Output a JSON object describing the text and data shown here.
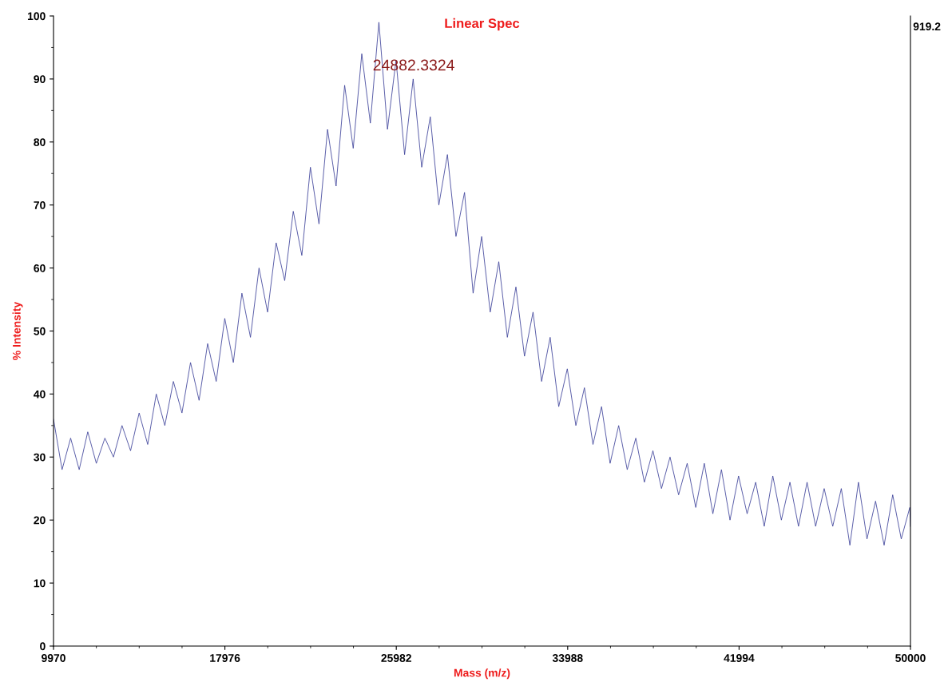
{
  "chart_data": {
    "type": "line",
    "title": "Linear Spec",
    "xlabel": "Mass (m/z)",
    "ylabel": "% Intensity",
    "annotations": [
      {
        "text": "24882.3324",
        "x": 24882.3324,
        "y": 92
      },
      "919.2"
    ],
    "xlim": [
      9970,
      50000
    ],
    "xticks": [
      9970,
      17976,
      25982,
      33988,
      41994,
      50000
    ],
    "ylim": [
      0,
      100
    ],
    "yticks": [
      0,
      10,
      20,
      30,
      40,
      50,
      60,
      70,
      80,
      90,
      100
    ],
    "grid": false,
    "legend": false,
    "marker": "none",
    "line_style": "solid",
    "series": [
      {
        "color": "#3b4099",
        "x": [
          9970,
          10370,
          10770,
          11170,
          11570,
          11970,
          12370,
          12770,
          13170,
          13570,
          13970,
          14370,
          14770,
          15170,
          15570,
          15970,
          16370,
          16770,
          17170,
          17570,
          17970,
          18370,
          18770,
          19170,
          19570,
          19970,
          20370,
          20770,
          21170,
          21570,
          21970,
          22370,
          22770,
          23170,
          23570,
          23970,
          24370,
          24770,
          25170,
          25570,
          25970,
          26370,
          26770,
          27170,
          27570,
          27970,
          28370,
          28770,
          29170,
          29570,
          29970,
          30370,
          30770,
          31170,
          31570,
          31970,
          32370,
          32770,
          33170,
          33570,
          33970,
          34370,
          34770,
          35170,
          35570,
          35970,
          36370,
          36770,
          37170,
          37570,
          37970,
          38370,
          38770,
          39170,
          39570,
          39970,
          40370,
          40770,
          41170,
          41570,
          41970,
          42370,
          42770,
          43170,
          43570,
          43970,
          44370,
          44770,
          45170,
          45570,
          45970,
          46370,
          46770,
          47170,
          47570,
          47970,
          48370,
          48770,
          49170,
          49570,
          49970,
          50000
        ],
        "values": [
          36,
          28,
          33,
          28,
          34,
          29,
          33,
          30,
          35,
          31,
          37,
          32,
          40,
          35,
          42,
          37,
          45,
          39,
          48,
          42,
          52,
          45,
          56,
          49,
          60,
          53,
          64,
          58,
          69,
          62,
          76,
          67,
          82,
          73,
          89,
          79,
          94,
          83,
          99,
          82,
          93,
          78,
          90,
          76,
          84,
          70,
          78,
          65,
          72,
          56,
          65,
          53,
          61,
          49,
          57,
          46,
          53,
          42,
          49,
          38,
          44,
          35,
          41,
          32,
          38,
          29,
          35,
          28,
          33,
          26,
          31,
          25,
          30,
          24,
          29,
          22,
          29,
          21,
          28,
          20,
          27,
          21,
          26,
          19,
          27,
          20,
          26,
          19,
          26,
          19,
          25,
          19,
          25,
          16,
          26,
          17,
          23,
          16,
          24,
          17,
          22,
          19
        ]
      }
    ]
  }
}
